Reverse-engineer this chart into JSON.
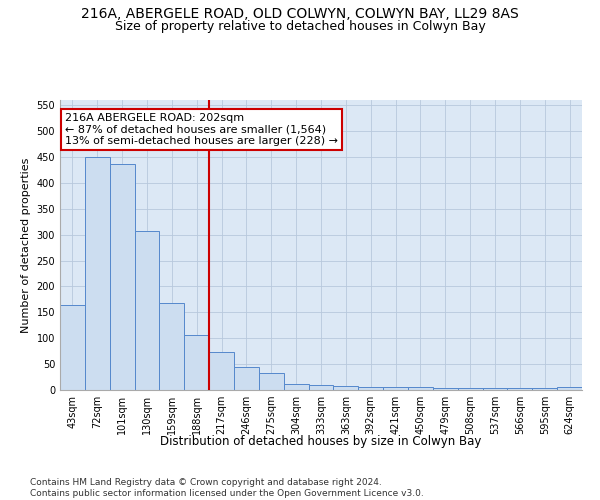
{
  "title1": "216A, ABERGELE ROAD, OLD COLWYN, COLWYN BAY, LL29 8AS",
  "title2": "Size of property relative to detached houses in Colwyn Bay",
  "xlabel": "Distribution of detached houses by size in Colwyn Bay",
  "ylabel": "Number of detached properties",
  "categories": [
    "43sqm",
    "72sqm",
    "101sqm",
    "130sqm",
    "159sqm",
    "188sqm",
    "217sqm",
    "246sqm",
    "275sqm",
    "304sqm",
    "333sqm",
    "363sqm",
    "392sqm",
    "421sqm",
    "450sqm",
    "479sqm",
    "508sqm",
    "537sqm",
    "566sqm",
    "595sqm",
    "624sqm"
  ],
  "values": [
    165,
    450,
    437,
    308,
    168,
    106,
    74,
    44,
    33,
    11,
    9,
    8,
    5,
    5,
    5,
    4,
    4,
    4,
    4,
    4,
    5
  ],
  "bar_color": "#ccddf0",
  "bar_edge_color": "#5588cc",
  "vline_x": 5.5,
  "vline_color": "#cc0000",
  "annotation_text": "216A ABERGELE ROAD: 202sqm\n← 87% of detached houses are smaller (1,564)\n13% of semi-detached houses are larger (228) →",
  "annotation_box_color": "#ffffff",
  "annotation_box_edge_color": "#cc0000",
  "ylim": [
    0,
    560
  ],
  "yticks": [
    0,
    50,
    100,
    150,
    200,
    250,
    300,
    350,
    400,
    450,
    500,
    550
  ],
  "background_color": "#ffffff",
  "plot_bg_color": "#dce8f5",
  "grid_color": "#b8c8dc",
  "footer_text": "Contains HM Land Registry data © Crown copyright and database right 2024.\nContains public sector information licensed under the Open Government Licence v3.0.",
  "title1_fontsize": 10,
  "title2_fontsize": 9,
  "xlabel_fontsize": 8.5,
  "ylabel_fontsize": 8,
  "tick_fontsize": 7,
  "annotation_fontsize": 8,
  "footer_fontsize": 6.5
}
